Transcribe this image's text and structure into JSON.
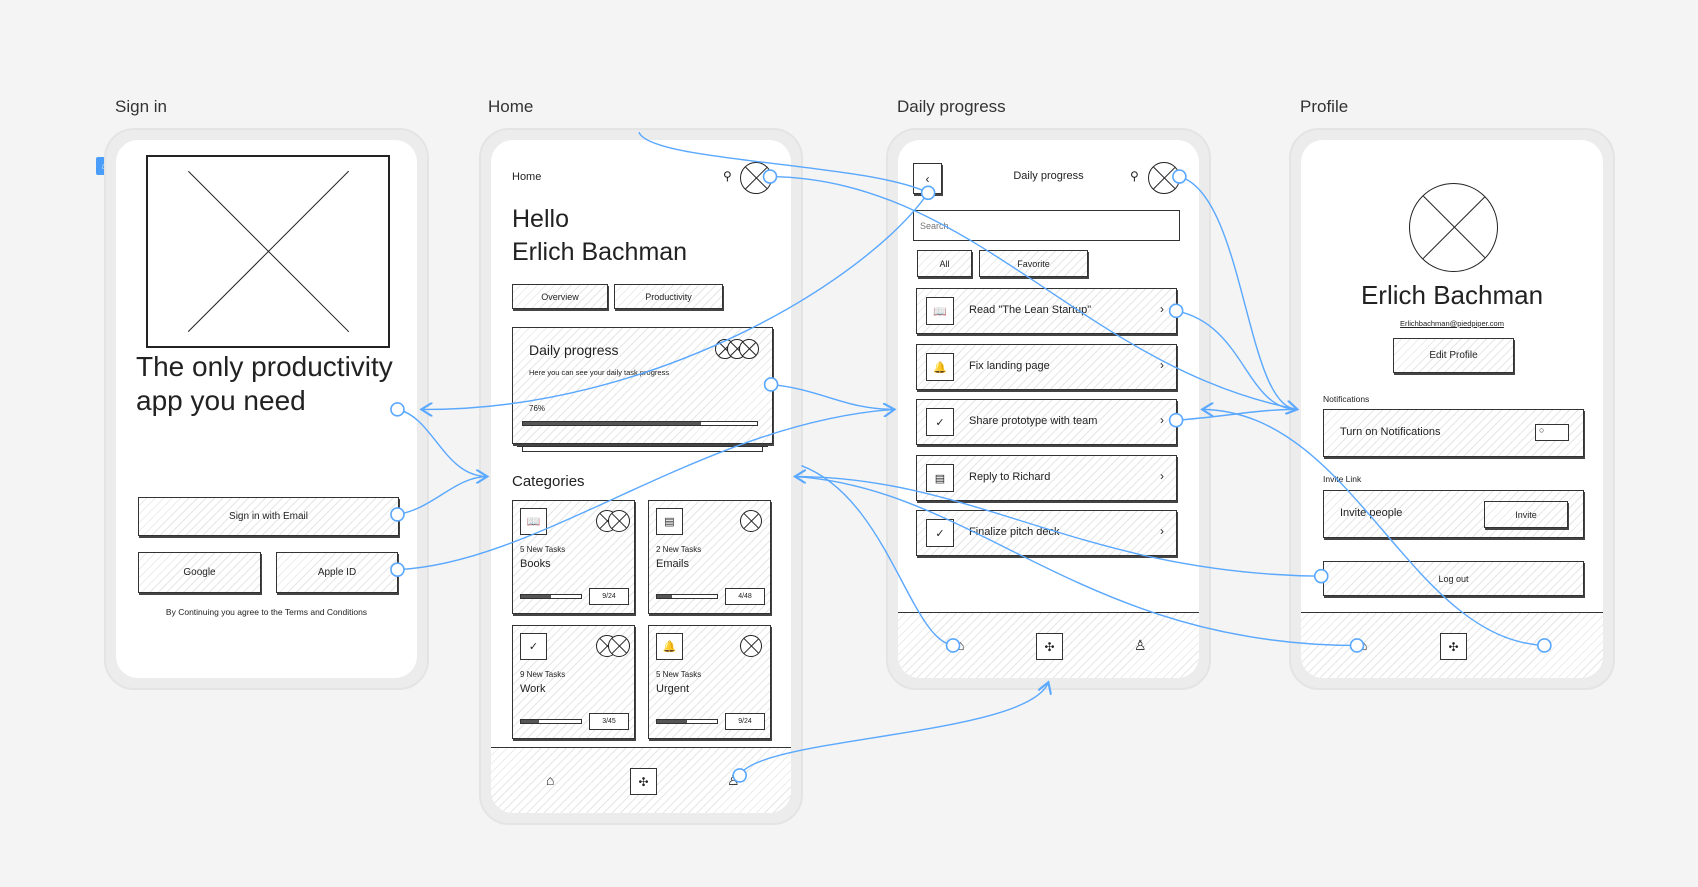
{
  "frames": {
    "signin": "Sign in",
    "home": "Home",
    "daily": "Daily progress",
    "profile": "Profile"
  },
  "accent": "#5aa8ff",
  "signin": {
    "headline_1": "The only productivity",
    "headline_2": "app you need",
    "email_btn": "Sign in with Email",
    "google_btn": "Google",
    "apple_btn": "Apple ID",
    "terms": "By Continuing you agree to the Terms and Conditions"
  },
  "home": {
    "header": "Home",
    "hello": "Hello",
    "name": "Erlich Bachman",
    "tabs": [
      "Overview",
      "Productivity"
    ],
    "card": {
      "title": "Daily progress",
      "subtitle": "Here you can see your daily task progress",
      "percent_label": "76%",
      "progress": 0.76
    },
    "categories_title": "Categories",
    "categories": [
      {
        "count": "5 New  Tasks",
        "name": "Books",
        "badge": "9/24",
        "icon": "book-icon",
        "progress": 0.5
      },
      {
        "count": "2 New  Tasks",
        "name": "Emails",
        "badge": "4/48",
        "icon": "archive-icon",
        "progress": 0.25
      },
      {
        "count": "9 New  Tasks",
        "name": "Work",
        "badge": "3/45",
        "icon": "check-icon",
        "progress": 0.3
      },
      {
        "count": "5 New  Tasks",
        "name": "Urgent",
        "badge": "9/24",
        "icon": "bell-icon",
        "progress": 0.5
      }
    ]
  },
  "daily": {
    "title": "Daily progress",
    "search_placeholder": "Search",
    "filters": [
      "All",
      "Favorite"
    ],
    "tasks": [
      {
        "label": "Read \"The Lean Startup\"",
        "icon": "book-icon"
      },
      {
        "label": "Fix landing page",
        "icon": "bell-icon"
      },
      {
        "label": "Share prototype with team",
        "icon": "check-icon"
      },
      {
        "label": "Reply to Richard",
        "icon": "archive-icon"
      },
      {
        "label": "Finalize pitch deck",
        "icon": "check-icon"
      }
    ]
  },
  "profile": {
    "name": "Erlich Bachman",
    "email": "Erlichbachman@piedpiper.com",
    "edit_btn": "Edit Profile",
    "notifications_label": "Notifications",
    "notifications_text": "Turn on Notifications",
    "invite_label": "Invite Link",
    "invite_text": "Invite people",
    "invite_btn": "Invite",
    "logout_btn": "Log out"
  }
}
